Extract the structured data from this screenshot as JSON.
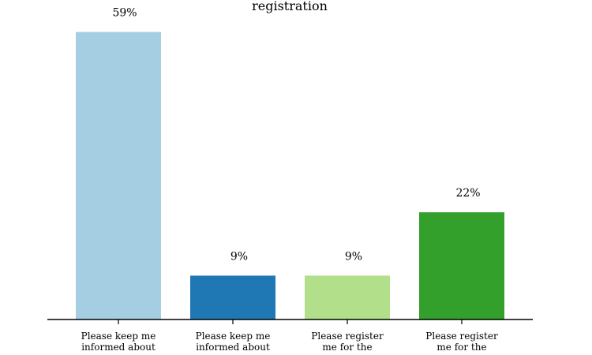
{
  "chart_data": {
    "type": "bar",
    "title": "registration",
    "categories": [
      [
        "Please keep me",
        "informed about"
      ],
      [
        "Please keep me",
        "informed about"
      ],
      [
        "Please register",
        "me for the"
      ],
      [
        "Please register",
        "me for the"
      ]
    ],
    "values": [
      59,
      9,
      9,
      22
    ],
    "value_labels": [
      "59%",
      "9%",
      "9%",
      "22%"
    ],
    "colors": [
      "#a6cee3",
      "#1f78b4",
      "#b2df8a",
      "#33a02c"
    ],
    "ylim": [
      0,
      62
    ],
    "grid": false,
    "legend": "none"
  }
}
